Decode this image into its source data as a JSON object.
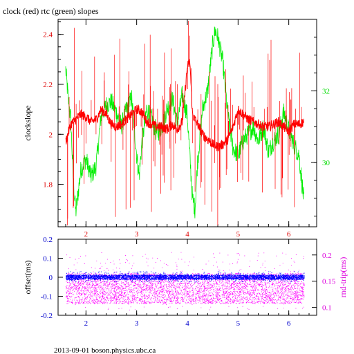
{
  "footer": "2013-09-01 boson.physics.ubc.ca",
  "colors": {
    "clock": "#ff0000",
    "rtc": "#00ee00",
    "offset": "#0000ff",
    "rndtrip": "#ff00ff",
    "axis_left": "#dd0000",
    "axis_right": "#00dd00",
    "axis_bottom_top": "#dd0000",
    "axis_bottom_bottom": "#0000cc",
    "frame": "#000000"
  },
  "chart_data": [
    {
      "type": "line",
      "title": "clock (red) rtc (green) slopes",
      "ylabel": "clockslope",
      "xlim": [
        1.45,
        6.55
      ],
      "ylim": [
        1.63,
        2.46
      ],
      "y2lim": [
        28.2,
        34.0
      ],
      "xticks": [
        "2",
        "3",
        "4",
        "5",
        "6"
      ],
      "yticks": [
        "1.8",
        "2",
        "2.2",
        "2.4"
      ],
      "y2ticks": [
        "30",
        "32"
      ],
      "series": [
        {
          "axis": "left",
          "x": [
            1.6,
            1.7,
            1.8,
            1.9,
            2.0,
            2.1,
            2.2,
            2.3,
            2.4,
            2.5,
            2.6,
            2.7,
            2.8,
            2.9,
            3.0,
            3.1,
            3.2,
            3.3,
            3.4,
            3.5,
            3.6,
            3.7,
            3.8,
            3.9,
            4.0,
            4.05,
            4.1,
            4.2,
            4.3,
            4.4,
            4.5,
            4.6,
            4.7,
            4.8,
            4.9,
            5.0,
            5.1,
            5.2,
            5.3,
            5.4,
            5.5,
            5.6,
            5.7,
            5.8,
            5.9,
            6.0,
            6.1,
            6.2,
            6.3
          ],
          "y": [
            1.97,
            2.04,
            2.06,
            2.08,
            2.07,
            2.05,
            2.06,
            2.1,
            2.08,
            2.04,
            2.03,
            2.04,
            2.06,
            2.08,
            2.1,
            2.09,
            2.05,
            2.04,
            2.03,
            2.03,
            2.02,
            2.04,
            2.02,
            2.05,
            2.27,
            2.29,
            2.08,
            2.04,
            2.0,
            1.98,
            1.96,
            1.95,
            1.96,
            1.98,
            2.03,
            2.1,
            2.08,
            2.06,
            2.05,
            2.04,
            2.03,
            2.03,
            2.04,
            2.05,
            2.03,
            2.01,
            2.04,
            2.04,
            2.05
          ]
        },
        {
          "axis": "right",
          "x": [
            1.6,
            1.65,
            1.7,
            1.75,
            1.8,
            1.85,
            1.9,
            2.0,
            2.1,
            2.2,
            2.3,
            2.4,
            2.5,
            2.6,
            2.7,
            2.8,
            2.9,
            3.0,
            3.05,
            3.1,
            3.2,
            3.3,
            3.4,
            3.5,
            3.6,
            3.7,
            3.8,
            3.9,
            4.0,
            4.1,
            4.15,
            4.2,
            4.3,
            4.4,
            4.5,
            4.55,
            4.6,
            4.7,
            4.8,
            4.9,
            5.0,
            5.1,
            5.2,
            5.3,
            5.4,
            5.5,
            5.6,
            5.7,
            5.8,
            5.9,
            6.0,
            6.1,
            6.2,
            6.3
          ],
          "y": [
            32.6,
            31.8,
            31.2,
            29.5,
            28.6,
            29.2,
            29.8,
            30.1,
            29.6,
            29.9,
            31.3,
            31.6,
            31.7,
            31.4,
            31.0,
            31.5,
            31.8,
            30.2,
            29.6,
            30.5,
            31.5,
            31.2,
            30.8,
            31.0,
            31.5,
            31.8,
            31.1,
            31.9,
            31.3,
            29.0,
            28.7,
            30.0,
            31.5,
            32.0,
            33.3,
            33.7,
            33.5,
            32.8,
            31.3,
            30.4,
            30.2,
            30.6,
            30.8,
            31.0,
            30.6,
            31.0,
            30.3,
            30.6,
            30.8,
            31.4,
            30.9,
            30.5,
            30.2,
            28.9
          ]
        }
      ]
    },
    {
      "type": "scatter",
      "ylabel": "offset(ms)",
      "y2label": "rnd-trip(ms)",
      "xlim": [
        1.45,
        6.55
      ],
      "ylim": [
        -0.2,
        0.2
      ],
      "y2lim": [
        0.085,
        0.23
      ],
      "xticks": [
        "2",
        "3",
        "4",
        "5",
        "6"
      ],
      "yticks": [
        "-0.2",
        "-0.1",
        "0",
        "0.1",
        "0.2"
      ],
      "y2ticks": [
        "0.1",
        "0.15",
        "0.2"
      ],
      "series": [
        {
          "axis": "left",
          "x": [
            1.6,
            6.3
          ],
          "y_band": [
            -0.012,
            0.012
          ],
          "y_spread": [
            -0.025,
            0.03
          ]
        },
        {
          "axis": "right",
          "x": [
            1.6,
            6.3
          ],
          "y_band": [
            0.107,
            0.165
          ],
          "y_spread": [
            0.095,
            0.205
          ]
        }
      ]
    }
  ]
}
